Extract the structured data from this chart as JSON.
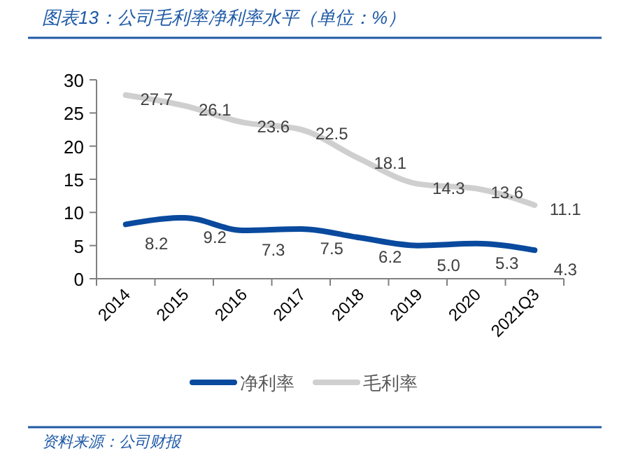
{
  "chart_data": {
    "type": "line",
    "title": "图表13：公司毛利率净利率水平（单位：%）",
    "categories": [
      "2014",
      "2015",
      "2016",
      "2017",
      "2018",
      "2019",
      "2020",
      "2021Q3"
    ],
    "series": [
      {
        "name": "净利率",
        "color": "#0a4a9e",
        "values": [
          8.2,
          9.2,
          7.3,
          7.5,
          6.2,
          5.0,
          5.3,
          4.3
        ],
        "value_labels": [
          "8.2",
          "9.2",
          "7.3",
          "7.5",
          "6.2",
          "5.0",
          "5.3",
          "4.3"
        ]
      },
      {
        "name": "毛利率",
        "color": "#cfcfcf",
        "values": [
          27.7,
          26.1,
          23.6,
          22.5,
          18.1,
          14.3,
          13.6,
          11.1
        ]
      }
    ],
    "ylim": [
      0,
      30
    ],
    "yticks": [
      0,
      5,
      10,
      15,
      20,
      25,
      30
    ],
    "data_labels": true,
    "legend": "bottom",
    "grid": false,
    "annotations": [
      "资料来源：公司财报"
    ]
  }
}
